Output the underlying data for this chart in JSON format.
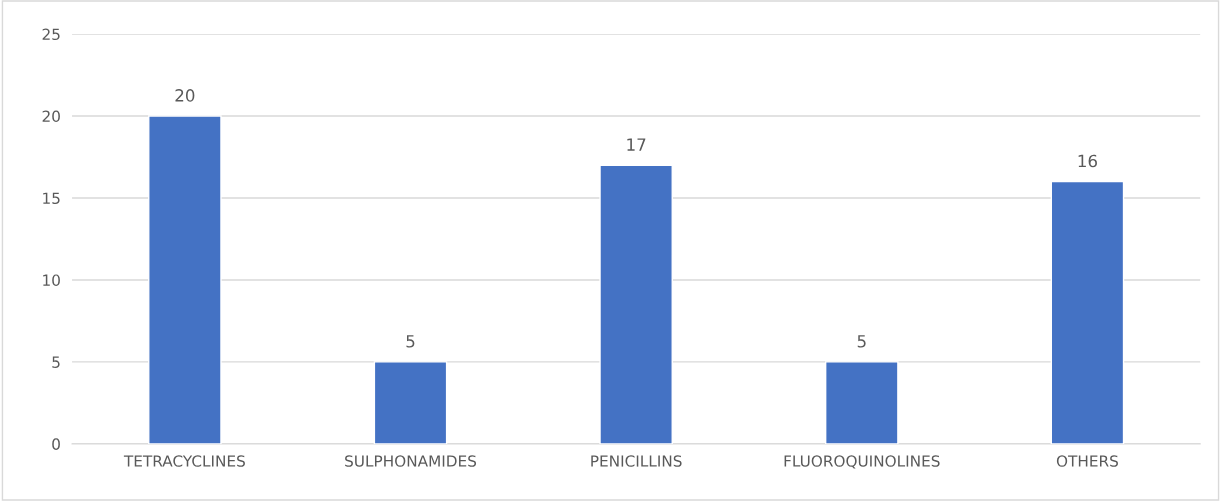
{
  "chart_data": {
    "type": "bar",
    "categories": [
      "TETRACYCLINES",
      "SULPHONAMIDES",
      "PENICILLINS",
      "FLUOROQUINOLINES",
      "OTHERS"
    ],
    "values": [
      20,
      5,
      17,
      5,
      16
    ],
    "color": "#4472c4",
    "ylim": [
      0,
      25
    ],
    "yticks": [
      0,
      5,
      10,
      15,
      20,
      25
    ],
    "grid": "y",
    "data_labels": true
  }
}
